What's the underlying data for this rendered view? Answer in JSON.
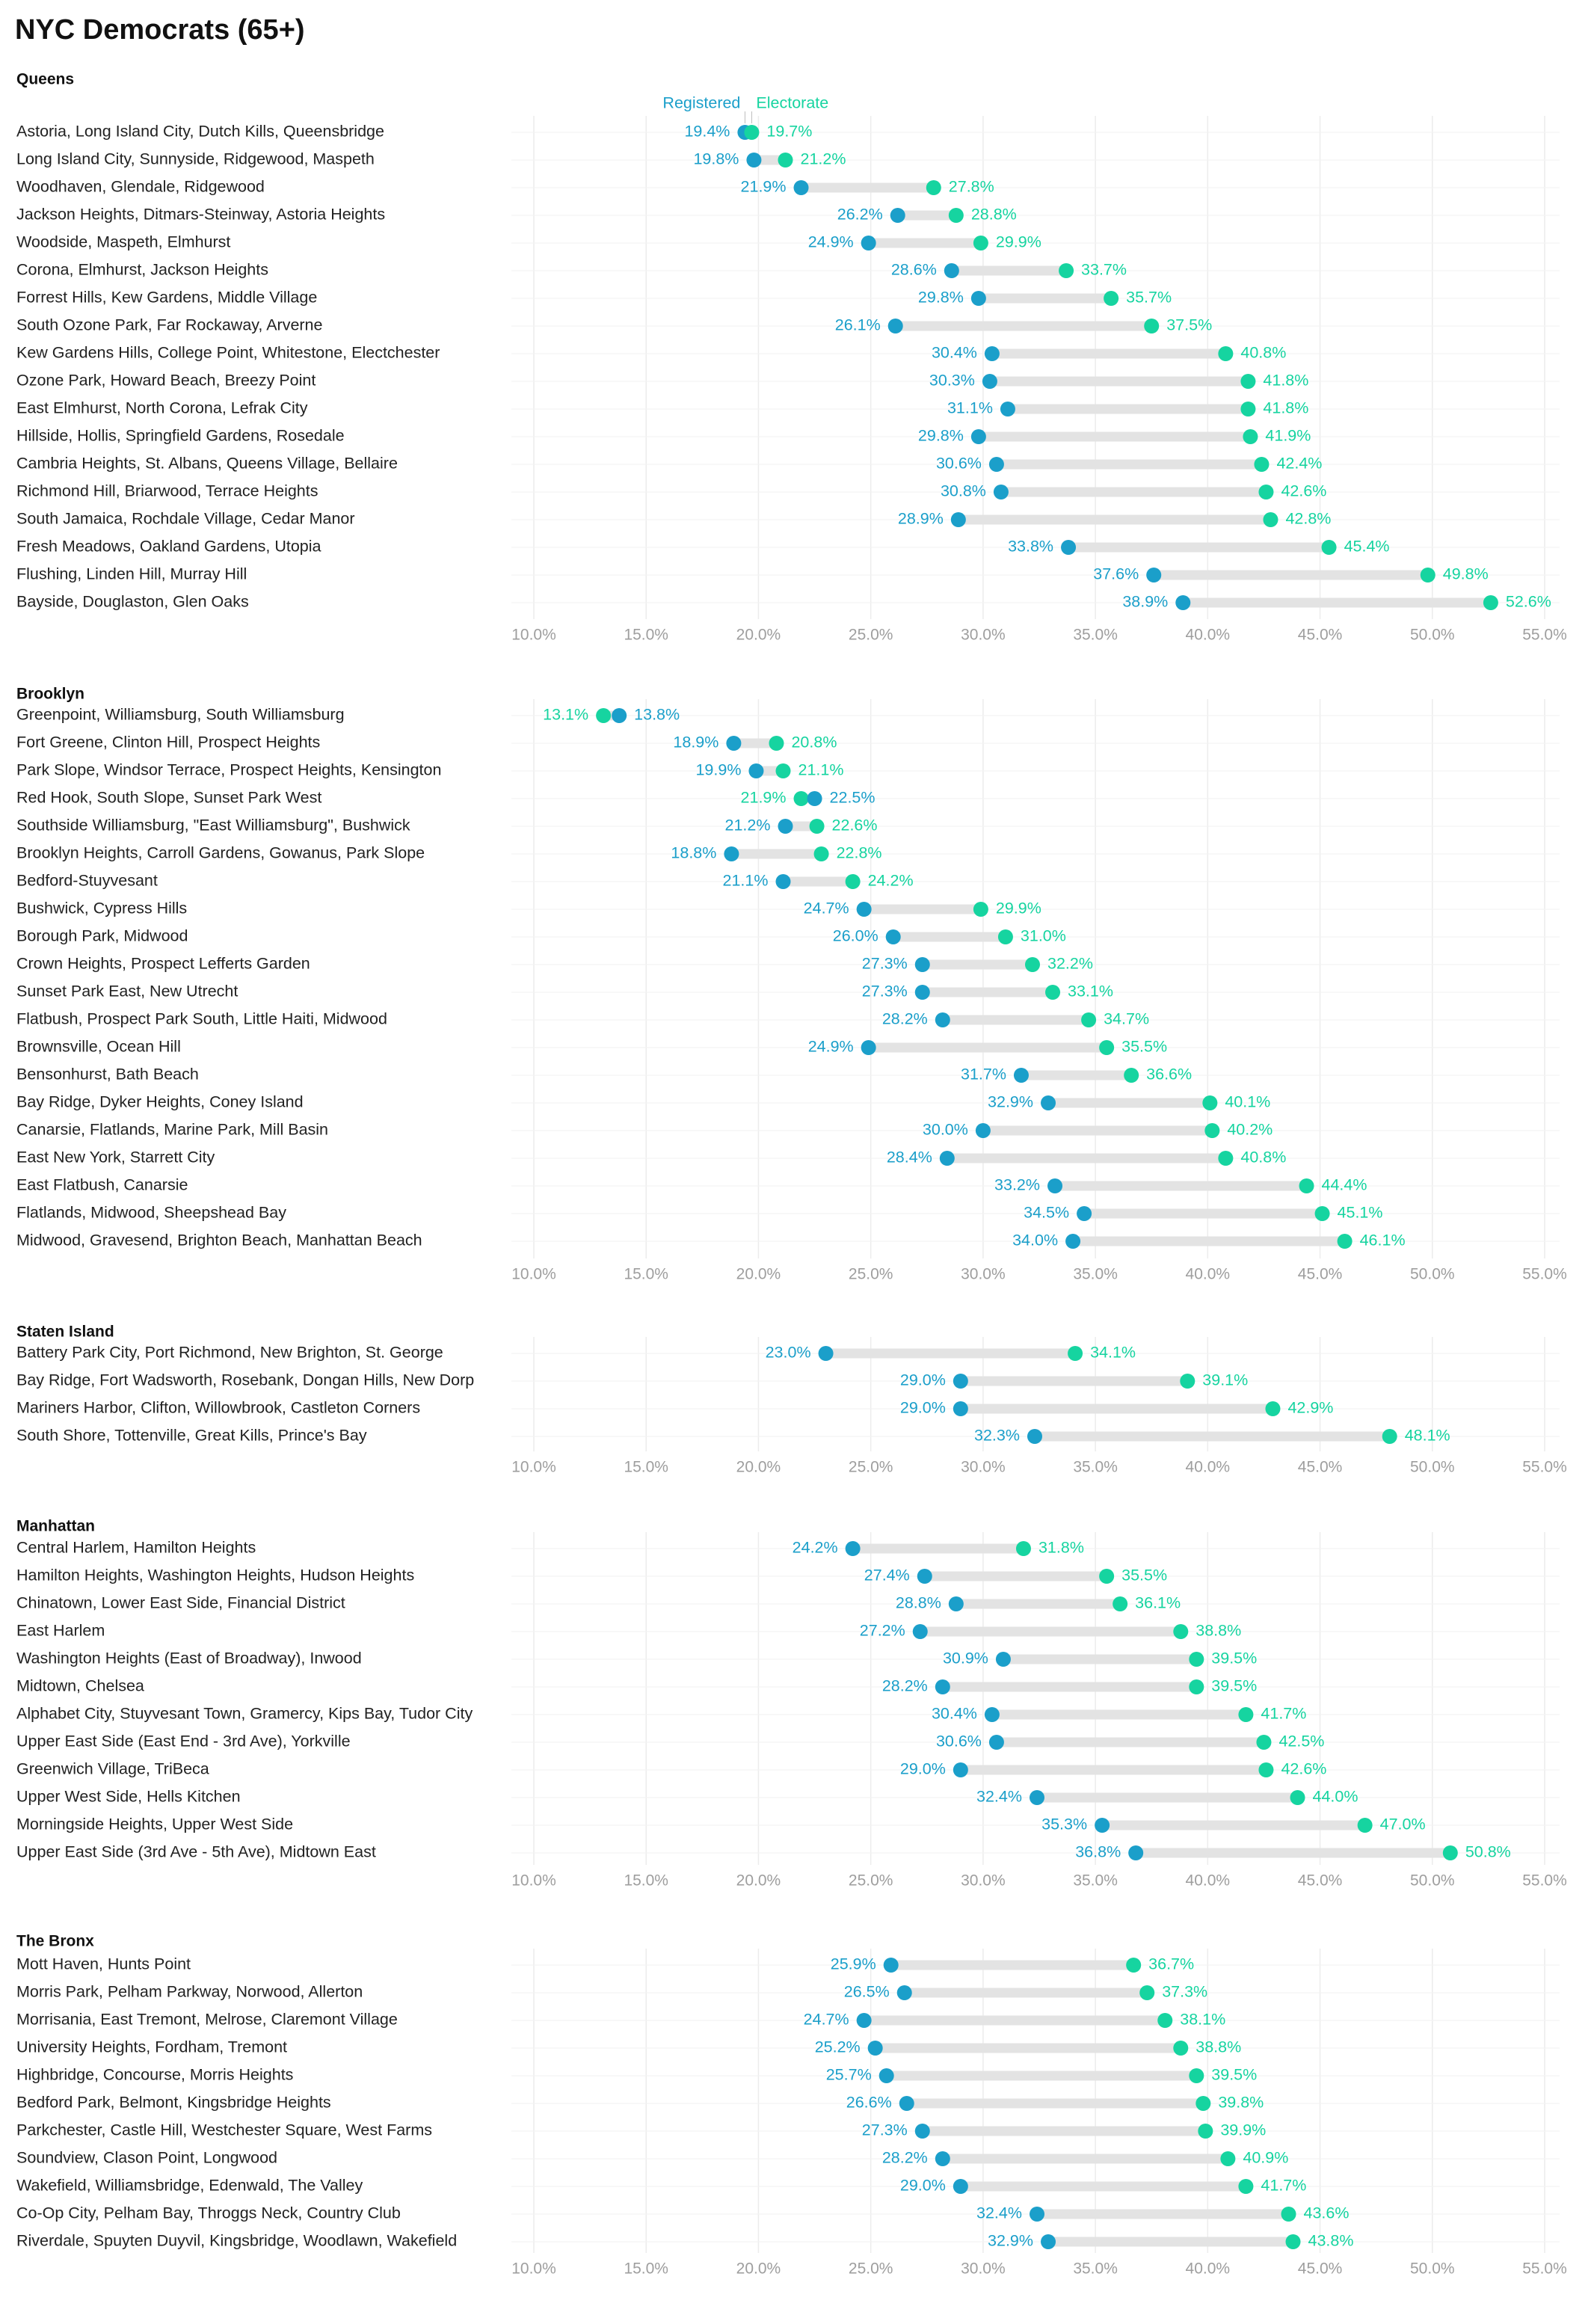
{
  "title": "NYC Democrats (65+)",
  "legend": {
    "registered": "Registered",
    "electorate": "Electorate"
  },
  "colors": {
    "registered": "#1b9fca",
    "electorate": "#16d4a0",
    "range": "#e3e3e3",
    "grid": "#ececec",
    "axis_text": "#9e9e9e",
    "label_text": "#222222"
  },
  "chart_data": {
    "type": "dumbbell",
    "title": "NYC Democrats (65+)",
    "xlim": [
      10.0,
      55.0
    ],
    "x_ticks": [
      "10.0%",
      "15.0%",
      "20.0%",
      "25.0%",
      "30.0%",
      "35.0%",
      "40.0%",
      "45.0%",
      "50.0%",
      "55.0%"
    ],
    "series_names": [
      "Registered",
      "Electorate"
    ],
    "panels": [
      {
        "name": "Queens",
        "rows": [
          {
            "label": "Astoria, Long Island City, Dutch Kills, Queensbridge",
            "registered": 19.4,
            "electorate": 19.7
          },
          {
            "label": "Long Island City, Sunnyside, Ridgewood, Maspeth",
            "registered": 19.8,
            "electorate": 21.2
          },
          {
            "label": "Woodhaven, Glendale, Ridgewood",
            "registered": 21.9,
            "electorate": 27.8
          },
          {
            "label": "Jackson Heights, Ditmars-Steinway, Astoria Heights",
            "registered": 26.2,
            "electorate": 28.8
          },
          {
            "label": "Woodside, Maspeth, Elmhurst",
            "registered": 24.9,
            "electorate": 29.9
          },
          {
            "label": "Corona, Elmhurst, Jackson Heights",
            "registered": 28.6,
            "electorate": 33.7
          },
          {
            "label": "Forrest Hills, Kew Gardens, Middle Village",
            "registered": 29.8,
            "electorate": 35.7
          },
          {
            "label": "South Ozone Park, Far Rockaway, Arverne",
            "registered": 26.1,
            "electorate": 37.5
          },
          {
            "label": "Kew Gardens Hills, College Point, Whitestone, Electchester",
            "registered": 30.4,
            "electorate": 40.8
          },
          {
            "label": "Ozone Park, Howard Beach, Breezy Point",
            "registered": 30.3,
            "electorate": 41.8
          },
          {
            "label": "East Elmhurst, North Corona, Lefrak City",
            "registered": 31.1,
            "electorate": 41.8
          },
          {
            "label": "Hillside, Hollis, Springfield Gardens, Rosedale",
            "registered": 29.8,
            "electorate": 41.9
          },
          {
            "label": "Cambria Heights, St. Albans, Queens Village, Bellaire",
            "registered": 30.6,
            "electorate": 42.4
          },
          {
            "label": "Richmond Hill, Briarwood, Terrace Heights",
            "registered": 30.8,
            "electorate": 42.6
          },
          {
            "label": "South Jamaica, Rochdale Village, Cedar Manor",
            "registered": 28.9,
            "electorate": 42.8
          },
          {
            "label": "Fresh Meadows, Oakland Gardens, Utopia",
            "registered": 33.8,
            "electorate": 45.4
          },
          {
            "label": "Flushing, Linden Hill, Murray Hill",
            "registered": 37.6,
            "electorate": 49.8
          },
          {
            "label": "Bayside, Douglaston, Glen Oaks",
            "registered": 38.9,
            "electorate": 52.6
          }
        ]
      },
      {
        "name": "Brooklyn",
        "rows": [
          {
            "label": "Greenpoint, Williamsburg, South Williamsburg",
            "registered": 13.8,
            "electorate": 13.1
          },
          {
            "label": "Fort Greene, Clinton Hill, Prospect Heights",
            "registered": 18.9,
            "electorate": 20.8
          },
          {
            "label": "Park Slope, Windsor Terrace, Prospect Heights, Kensington",
            "registered": 19.9,
            "electorate": 21.1
          },
          {
            "label": "Red Hook, South Slope, Sunset Park West",
            "registered": 22.5,
            "electorate": 21.9
          },
          {
            "label": "Southside Williamsburg, \"East Williamsburg\", Bushwick",
            "registered": 21.2,
            "electorate": 22.6
          },
          {
            "label": "Brooklyn Heights, Carroll Gardens, Gowanus, Park Slope",
            "registered": 18.8,
            "electorate": 22.8
          },
          {
            "label": "Bedford-Stuyvesant",
            "registered": 21.1,
            "electorate": 24.2
          },
          {
            "label": "Bushwick, Cypress Hills",
            "registered": 24.7,
            "electorate": 29.9
          },
          {
            "label": "Borough Park, Midwood",
            "registered": 26.0,
            "electorate": 31.0
          },
          {
            "label": "Crown Heights, Prospect Lefferts Garden",
            "registered": 27.3,
            "electorate": 32.2
          },
          {
            "label": "Sunset Park East, New Utrecht",
            "registered": 27.3,
            "electorate": 33.1
          },
          {
            "label": "Flatbush, Prospect Park South, Little Haiti, Midwood",
            "registered": 28.2,
            "electorate": 34.7
          },
          {
            "label": "Brownsville, Ocean Hill",
            "registered": 24.9,
            "electorate": 35.5
          },
          {
            "label": "Bensonhurst, Bath Beach",
            "registered": 31.7,
            "electorate": 36.6
          },
          {
            "label": "Bay Ridge, Dyker Heights, Coney Island",
            "registered": 32.9,
            "electorate": 40.1
          },
          {
            "label": "Canarsie, Flatlands, Marine Park, Mill Basin",
            "registered": 30.0,
            "electorate": 40.2
          },
          {
            "label": "East New York, Starrett City",
            "registered": 28.4,
            "electorate": 40.8
          },
          {
            "label": "East Flatbush, Canarsie",
            "registered": 33.2,
            "electorate": 44.4
          },
          {
            "label": "Flatlands, Midwood, Sheepshead Bay",
            "registered": 34.5,
            "electorate": 45.1
          },
          {
            "label": "Midwood, Gravesend, Brighton Beach, Manhattan Beach",
            "registered": 34.0,
            "electorate": 46.1
          }
        ]
      },
      {
        "name": "Staten Island",
        "rows": [
          {
            "label": "Battery Park City, Port Richmond, New Brighton, St. George",
            "registered": 23.0,
            "electorate": 34.1
          },
          {
            "label": "Bay Ridge, Fort Wadsworth, Rosebank, Dongan Hills, New Dorp",
            "registered": 29.0,
            "electorate": 39.1
          },
          {
            "label": "Mariners Harbor, Clifton, Willowbrook, Castleton Corners",
            "registered": 29.0,
            "electorate": 42.9
          },
          {
            "label": "South Shore, Tottenville, Great Kills, Prince's Bay",
            "registered": 32.3,
            "electorate": 48.1
          }
        ]
      },
      {
        "name": "Manhattan",
        "rows": [
          {
            "label": "Central Harlem, Hamilton Heights",
            "registered": 24.2,
            "electorate": 31.8
          },
          {
            "label": "Hamilton Heights, Washington Heights, Hudson Heights",
            "registered": 27.4,
            "electorate": 35.5
          },
          {
            "label": "Chinatown, Lower East Side, Financial District",
            "registered": 28.8,
            "electorate": 36.1
          },
          {
            "label": "East Harlem",
            "registered": 27.2,
            "electorate": 38.8
          },
          {
            "label": "Washington Heights (East of Broadway), Inwood",
            "registered": 30.9,
            "electorate": 39.5
          },
          {
            "label": "Midtown, Chelsea",
            "registered": 28.2,
            "electorate": 39.5
          },
          {
            "label": "Alphabet City, Stuyvesant Town, Gramercy, Kips Bay, Tudor City",
            "registered": 30.4,
            "electorate": 41.7
          },
          {
            "label": "Upper East Side (East End - 3rd Ave), Yorkville",
            "registered": 30.6,
            "electorate": 42.5
          },
          {
            "label": "Greenwich Village, TriBeca",
            "registered": 29.0,
            "electorate": 42.6
          },
          {
            "label": "Upper West Side, Hells Kitchen",
            "registered": 32.4,
            "electorate": 44.0
          },
          {
            "label": "Morningside Heights, Upper West Side",
            "registered": 35.3,
            "electorate": 47.0
          },
          {
            "label": "Upper East Side (3rd Ave - 5th Ave), Midtown East",
            "registered": 36.8,
            "electorate": 50.8
          }
        ]
      },
      {
        "name": "The Bronx",
        "rows": [
          {
            "label": "Mott Haven, Hunts Point",
            "registered": 25.9,
            "electorate": 36.7
          },
          {
            "label": "Morris Park, Pelham Parkway, Norwood, Allerton",
            "registered": 26.5,
            "electorate": 37.3
          },
          {
            "label": "Morrisania, East Tremont, Melrose, Claremont Village",
            "registered": 24.7,
            "electorate": 38.1
          },
          {
            "label": "University Heights, Fordham, Tremont",
            "registered": 25.2,
            "electorate": 38.8
          },
          {
            "label": "Highbridge, Concourse, Morris Heights",
            "registered": 25.7,
            "electorate": 39.5
          },
          {
            "label": "Bedford Park, Belmont, Kingsbridge Heights",
            "registered": 26.6,
            "electorate": 39.8
          },
          {
            "label": "Parkchester, Castle Hill, Westchester Square, West Farms",
            "registered": 27.3,
            "electorate": 39.9
          },
          {
            "label": "Soundview, Clason Point, Longwood",
            "registered": 28.2,
            "electorate": 40.9
          },
          {
            "label": "Wakefield, Williamsbridge, Edenwald, The Valley",
            "registered": 29.0,
            "electorate": 41.7
          },
          {
            "label": "Co-Op City, Pelham Bay, Throggs Neck, Country Club",
            "registered": 32.4,
            "electorate": 43.6
          },
          {
            "label": "Riverdale, Spuyten Duyvil, Kingsbridge, Woodlawn, Wakefield",
            "registered": 32.9,
            "electorate": 43.8
          }
        ]
      }
    ]
  }
}
